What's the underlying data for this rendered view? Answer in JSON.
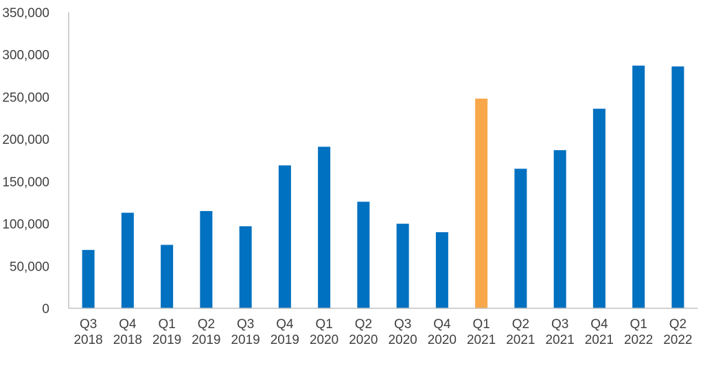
{
  "chart_data": {
    "type": "bar",
    "title": "",
    "xlabel": "",
    "ylabel": "",
    "ylim": [
      0,
      350000
    ],
    "yticks": [
      0,
      50000,
      100000,
      150000,
      200000,
      250000,
      300000,
      350000
    ],
    "ytick_labels": [
      "0",
      "50,000",
      "100,000",
      "150,000",
      "200,000",
      "250,000",
      "300,000",
      "350,000"
    ],
    "grid": false,
    "legend": "none",
    "categories": [
      [
        "Q3",
        "2018"
      ],
      [
        "Q4",
        "2018"
      ],
      [
        "Q1",
        "2019"
      ],
      [
        "Q2",
        "2019"
      ],
      [
        "Q3",
        "2019"
      ],
      [
        "Q4",
        "2019"
      ],
      [
        "Q1",
        "2020"
      ],
      [
        "Q2",
        "2020"
      ],
      [
        "Q3",
        "2020"
      ],
      [
        "Q4",
        "2020"
      ],
      [
        "Q1",
        "2021"
      ],
      [
        "Q2",
        "2021"
      ],
      [
        "Q3",
        "2021"
      ],
      [
        "Q4",
        "2021"
      ],
      [
        "Q1",
        "2022"
      ],
      [
        "Q2",
        "2022"
      ]
    ],
    "values": [
      69000,
      113000,
      75000,
      115000,
      97000,
      169000,
      191000,
      126000,
      100000,
      90000,
      248000,
      165000,
      187000,
      236000,
      287000,
      286000
    ],
    "colors": {
      "bar": "#0070c0",
      "highlight": "#f8a84b",
      "axis": "#bfbfbf"
    },
    "highlight_index": 10
  }
}
